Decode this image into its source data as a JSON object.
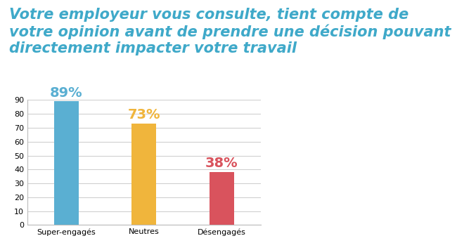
{
  "chart_data": {
    "type": "bar",
    "title": "Votre employeur vous consulte, tient compte de votre opinion avant de prendre une décision pouvant directement impacter votre travail",
    "categories": [
      "Super-engagés",
      "Neutres",
      "Désengagés"
    ],
    "values": [
      89,
      73,
      38
    ],
    "value_labels": [
      "89%",
      "73%",
      "38%"
    ],
    "colors": [
      "#5aafd2",
      "#f0b53c",
      "#d9535d"
    ],
    "data_labels": true,
    "ylim": [
      0,
      90
    ],
    "yticks": [
      0,
      10,
      20,
      30,
      40,
      50,
      60,
      70,
      80,
      90
    ],
    "grid": true
  }
}
